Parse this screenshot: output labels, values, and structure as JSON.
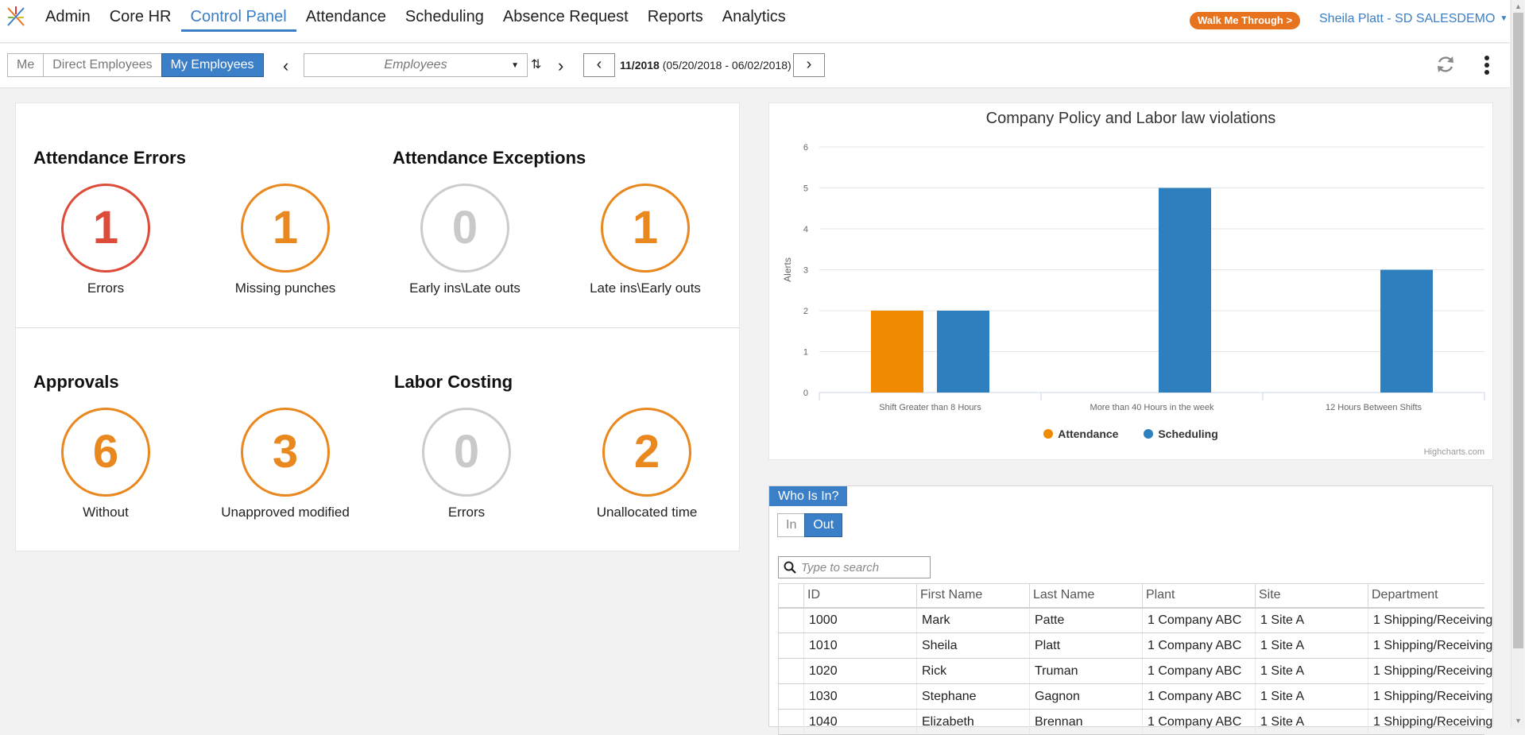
{
  "nav": {
    "items": [
      {
        "label": "Admin"
      },
      {
        "label": "Core HR"
      },
      {
        "label": "Control Panel"
      },
      {
        "label": "Attendance"
      },
      {
        "label": "Scheduling"
      },
      {
        "label": "Absence Request"
      },
      {
        "label": "Reports"
      },
      {
        "label": "Analytics"
      }
    ],
    "active": "Control Panel",
    "walk_me_label": "Walk Me Through >",
    "user_label": "Sheila Platt - SD SALESDEMO"
  },
  "toolbar": {
    "scope": [
      "Me",
      "Direct Employees",
      "My Employees"
    ],
    "scope_selected": "My Employees",
    "employee_placeholder": "Employees",
    "period_id": "11/2018",
    "period_range": "(05/20/2018 - 06/02/2018)"
  },
  "attendance_errors": {
    "title": "Attendance Errors",
    "kpis": [
      {
        "value": "1",
        "label": "Errors"
      },
      {
        "value": "1",
        "label": "Missing punches"
      }
    ]
  },
  "attendance_exceptions": {
    "title": "Attendance Exceptions",
    "kpis": [
      {
        "value": "0",
        "label": "Early ins\\Late outs"
      },
      {
        "value": "1",
        "label": "Late ins\\Early outs"
      }
    ]
  },
  "approvals": {
    "title": "Approvals",
    "kpis": [
      {
        "value": "6",
        "label": "Without"
      },
      {
        "value": "3",
        "label": "Unapproved modified"
      }
    ]
  },
  "labor_costing": {
    "title": "Labor Costing",
    "kpis": [
      {
        "value": "0",
        "label": "Errors"
      },
      {
        "value": "2",
        "label": "Unallocated time"
      }
    ]
  },
  "colors": {
    "accent": "#3a7fc8",
    "orange": "#e8881e",
    "red": "#dd4b39",
    "gray": "#cccccc",
    "attendance_series": "#f08a00",
    "scheduling_series": "#2e7fbd"
  },
  "chart_data": {
    "type": "bar",
    "title": "Company Policy and Labor law violations",
    "ylabel": "Alerts",
    "xlabel": "",
    "ylim": [
      0,
      6
    ],
    "yticks": [
      0,
      1,
      2,
      3,
      4,
      5,
      6
    ],
    "categories": [
      "Shift Greater than 8 Hours",
      "More than 40 Hours in the week",
      "12 Hours Between Shifts"
    ],
    "series": [
      {
        "name": "Attendance",
        "values": [
          2,
          0,
          0
        ],
        "color": "#f08a00"
      },
      {
        "name": "Scheduling",
        "values": [
          2,
          5,
          3
        ],
        "color": "#2e7fbd"
      }
    ],
    "grid": true,
    "legend": "bottom",
    "credits": "Highcharts.com"
  },
  "who_is_in": {
    "title": "Who Is In?",
    "toggle": [
      "In",
      "Out"
    ],
    "toggle_selected": "Out",
    "search_placeholder": "Type to search",
    "columns": [
      "",
      "ID",
      "First Name",
      "Last Name",
      "Plant",
      "Site",
      "Department"
    ],
    "rows": [
      [
        "",
        "1000",
        "Mark",
        "Patte",
        "1 Company ABC",
        "1 Site A",
        "1 Shipping/Receiving"
      ],
      [
        "",
        "1010",
        "Sheila",
        "Platt",
        "1 Company ABC",
        "1 Site A",
        "1 Shipping/Receiving"
      ],
      [
        "",
        "1020",
        "Rick",
        "Truman",
        "1 Company ABC",
        "1 Site A",
        "1 Shipping/Receiving"
      ],
      [
        "",
        "1030",
        "Stephane",
        "Gagnon",
        "1 Company ABC",
        "1 Site A",
        "1 Shipping/Receiving"
      ],
      [
        "",
        "1040",
        "Elizabeth",
        "Brennan",
        "1 Company ABC",
        "1 Site A",
        "1 Shipping/Receiving"
      ]
    ]
  }
}
